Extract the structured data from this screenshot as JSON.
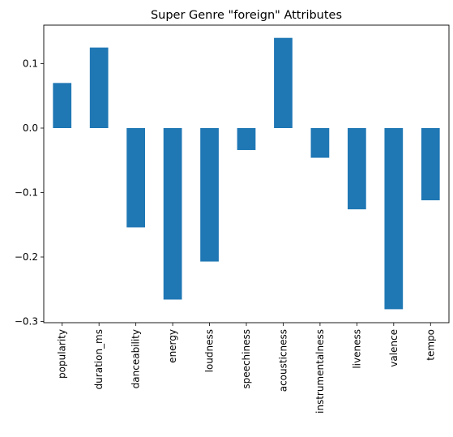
{
  "chart_data": {
    "type": "bar",
    "title": "Super Genre \"foreign\" Attributes",
    "xlabel": "",
    "ylabel": "",
    "categories": [
      "popularity",
      "duration_ms",
      "danceability",
      "energy",
      "loudness",
      "speechiness",
      "acousticness",
      "instrumentalness",
      "liveness",
      "valence",
      "tempo"
    ],
    "values": [
      0.07,
      0.125,
      -0.154,
      -0.266,
      -0.207,
      -0.034,
      0.14,
      -0.046,
      -0.126,
      -0.281,
      -0.112
    ],
    "yticks": [
      0.1,
      0.0,
      -0.1,
      -0.2,
      -0.3
    ],
    "ytick_labels": [
      "0.1",
      "0.0",
      "−0.1",
      "−0.2",
      "−0.3"
    ],
    "ylim": [
      -0.3,
      0.16
    ],
    "bar_color": "#1f77b4",
    "grid": false,
    "legend": "none"
  }
}
